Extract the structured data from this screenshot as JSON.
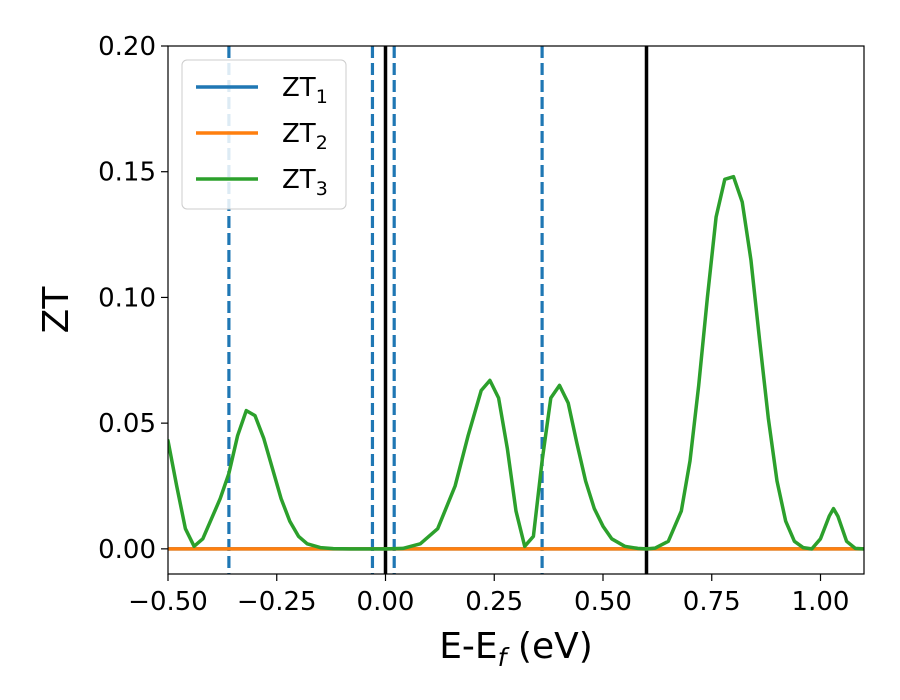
{
  "chart_data": {
    "type": "line",
    "xlabel": {
      "main": "E-E",
      "sub": "f",
      "suffix": " (eV)"
    },
    "ylabel": "ZT",
    "xlim": [
      -0.5,
      1.1
    ],
    "ylim": [
      -0.01,
      0.2
    ],
    "xticks": [
      -0.5,
      -0.25,
      0.0,
      0.25,
      0.5,
      0.75,
      1.0
    ],
    "xtick_labels": [
      "−0.50",
      "−0.25",
      "0.00",
      "0.25",
      "0.50",
      "0.75",
      "1.00"
    ],
    "yticks": [
      0.0,
      0.05,
      0.1,
      0.15,
      0.2
    ],
    "ytick_labels": [
      "0.00",
      "0.05",
      "0.10",
      "0.15",
      "0.20"
    ],
    "grid": false,
    "legend_position": "top-left",
    "series": [
      {
        "name": "ZT",
        "sub": "1",
        "color": "#1f77b4",
        "x": [
          -0.5,
          1.1
        ],
        "y": [
          0.0,
          0.0
        ]
      },
      {
        "name": "ZT",
        "sub": "2",
        "color": "#ff7f0e",
        "x": [
          -0.5,
          1.1
        ],
        "y": [
          0.0,
          0.0
        ]
      },
      {
        "name": "ZT",
        "sub": "3",
        "color": "#2ca02c",
        "x": [
          -0.5,
          -0.48,
          -0.46,
          -0.44,
          -0.42,
          -0.4,
          -0.38,
          -0.36,
          -0.34,
          -0.32,
          -0.3,
          -0.28,
          -0.26,
          -0.24,
          -0.22,
          -0.2,
          -0.18,
          -0.15,
          -0.12,
          -0.08,
          -0.04,
          0.0,
          0.04,
          0.08,
          0.12,
          0.16,
          0.19,
          0.22,
          0.24,
          0.26,
          0.28,
          0.3,
          0.32,
          0.34,
          0.36,
          0.38,
          0.4,
          0.42,
          0.44,
          0.46,
          0.48,
          0.5,
          0.52,
          0.55,
          0.58,
          0.6,
          0.62,
          0.65,
          0.68,
          0.7,
          0.72,
          0.74,
          0.76,
          0.78,
          0.8,
          0.82,
          0.84,
          0.86,
          0.88,
          0.9,
          0.92,
          0.94,
          0.96,
          0.98,
          1.0,
          1.02,
          1.03,
          1.04,
          1.06,
          1.08,
          1.1
        ],
        "y": [
          0.043,
          0.025,
          0.008,
          0.001,
          0.004,
          0.012,
          0.02,
          0.03,
          0.045,
          0.055,
          0.053,
          0.044,
          0.032,
          0.02,
          0.011,
          0.005,
          0.002,
          0.0005,
          0.0001,
          0.0,
          0.0,
          0.0,
          0.0002,
          0.002,
          0.008,
          0.025,
          0.045,
          0.063,
          0.067,
          0.06,
          0.04,
          0.015,
          0.001,
          0.005,
          0.035,
          0.06,
          0.065,
          0.058,
          0.042,
          0.027,
          0.016,
          0.009,
          0.004,
          0.001,
          0.0002,
          0.0,
          0.0003,
          0.003,
          0.015,
          0.035,
          0.065,
          0.1,
          0.132,
          0.147,
          0.148,
          0.138,
          0.115,
          0.083,
          0.052,
          0.027,
          0.011,
          0.003,
          0.0005,
          0.0,
          0.004,
          0.013,
          0.016,
          0.013,
          0.003,
          0.0002,
          0.0
        ]
      }
    ],
    "vlines": [
      {
        "x": -0.36,
        "style": "dashed",
        "color": "#1f77b4"
      },
      {
        "x": -0.03,
        "style": "dashed",
        "color": "#1f77b4"
      },
      {
        "x": 0.02,
        "style": "dashed",
        "color": "#1f77b4"
      },
      {
        "x": 0.36,
        "style": "dashed",
        "color": "#1f77b4"
      },
      {
        "x": 0.0,
        "style": "solid",
        "color": "#000000"
      },
      {
        "x": 0.6,
        "style": "solid",
        "color": "#000000"
      }
    ]
  }
}
